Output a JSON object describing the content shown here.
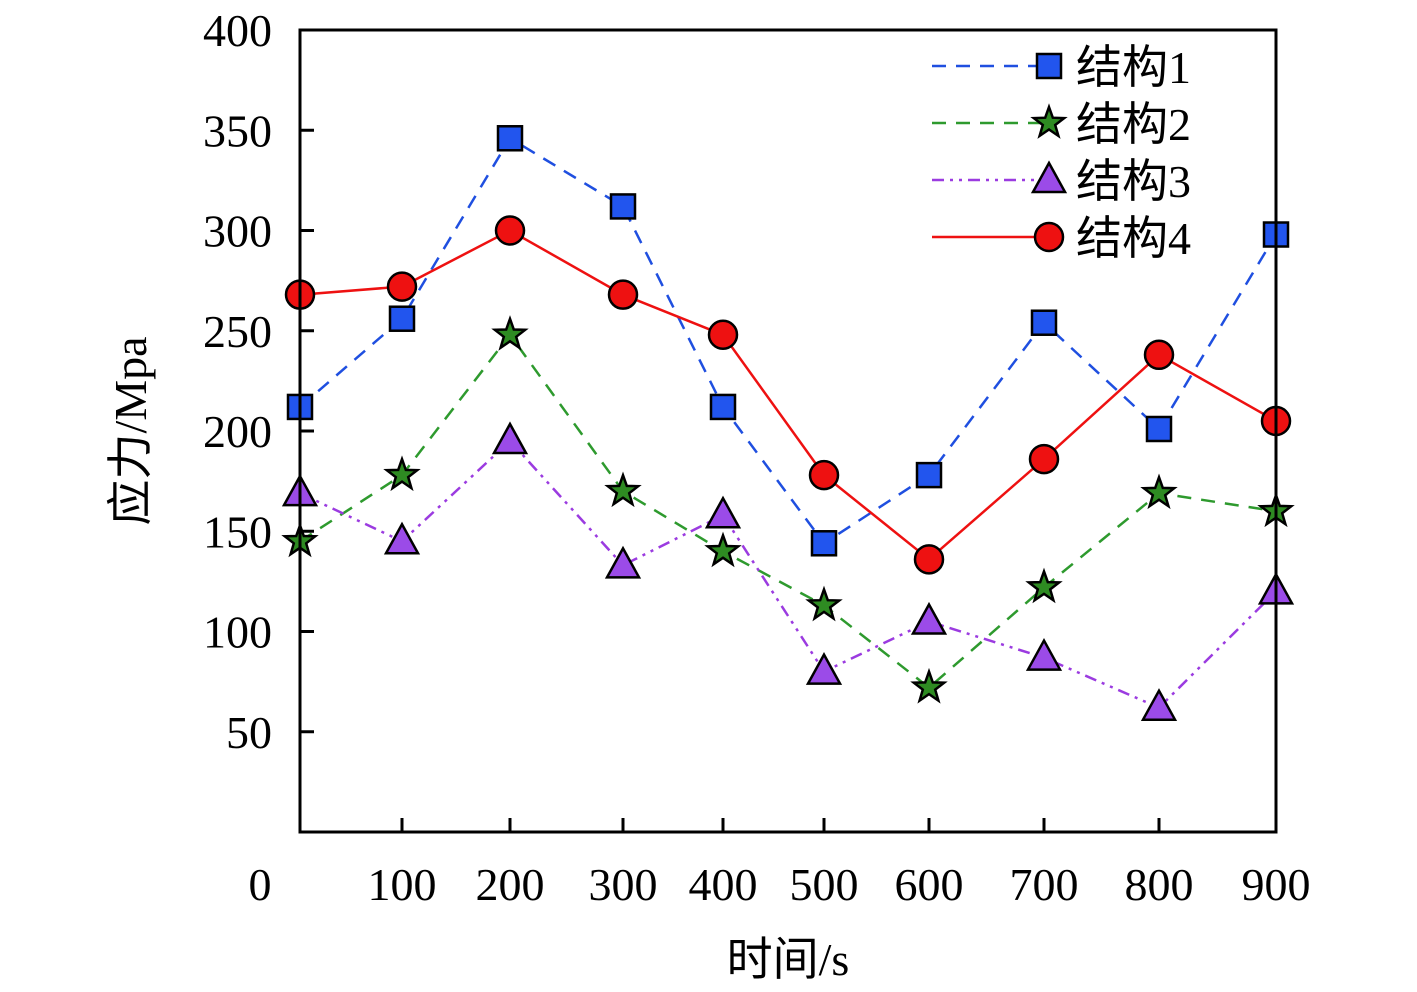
{
  "chart_data": {
    "type": "line",
    "xlabel": "时间/s",
    "ylabel": "应力/Mpa",
    "xlim": [
      0,
      900
    ],
    "ylim": [
      0,
      400
    ],
    "x_ticks": [
      0,
      100,
      200,
      300,
      400,
      500,
      600,
      700,
      800,
      900
    ],
    "y_ticks": [
      50,
      100,
      150,
      200,
      250,
      300,
      350,
      400
    ],
    "x_tick_labels": [
      "0",
      "100",
      "200",
      "300",
      "400",
      "500",
      "600",
      "700",
      "800",
      "900"
    ],
    "y_tick_labels": [
      "50",
      "100",
      "150",
      "200",
      "250",
      "300",
      "350",
      "400"
    ],
    "grid": false,
    "legend_position": "top-right",
    "series": [
      {
        "name": "结构1",
        "color": "#1f4fe0",
        "line_style": "dashed",
        "marker": "square",
        "marker_color": "#2255ee",
        "x": [
          0,
          100,
          200,
          300,
          400,
          500,
          600,
          700,
          800,
          900
        ],
        "y": [
          212,
          256,
          346,
          312,
          212,
          144,
          178,
          254,
          201,
          298
        ]
      },
      {
        "name": "结构2",
        "color": "#2e9a2e",
        "line_style": "dashed",
        "marker": "star",
        "marker_color": "#2e8b22",
        "x": [
          0,
          100,
          200,
          300,
          400,
          500,
          600,
          700,
          800,
          900
        ],
        "y": [
          145,
          178,
          248,
          170,
          140,
          113,
          72,
          122,
          169,
          160
        ]
      },
      {
        "name": "结构3",
        "color": "#9b3be0",
        "line_style": "dashdotdot",
        "marker": "triangle",
        "marker_color": "#9b4be8",
        "x": [
          0,
          100,
          200,
          300,
          400,
          500,
          600,
          700,
          800,
          900
        ],
        "y": [
          169,
          145,
          195,
          133,
          158,
          80,
          105,
          87,
          62,
          120
        ]
      },
      {
        "name": "结构4",
        "color": "#ee1111",
        "line_style": "solid",
        "marker": "circle",
        "marker_color": "#ee1111",
        "x": [
          0,
          100,
          200,
          300,
          400,
          500,
          600,
          700,
          800,
          900
        ],
        "y": [
          268,
          272,
          300,
          268,
          248,
          178,
          136,
          186,
          238,
          205
        ]
      }
    ]
  }
}
